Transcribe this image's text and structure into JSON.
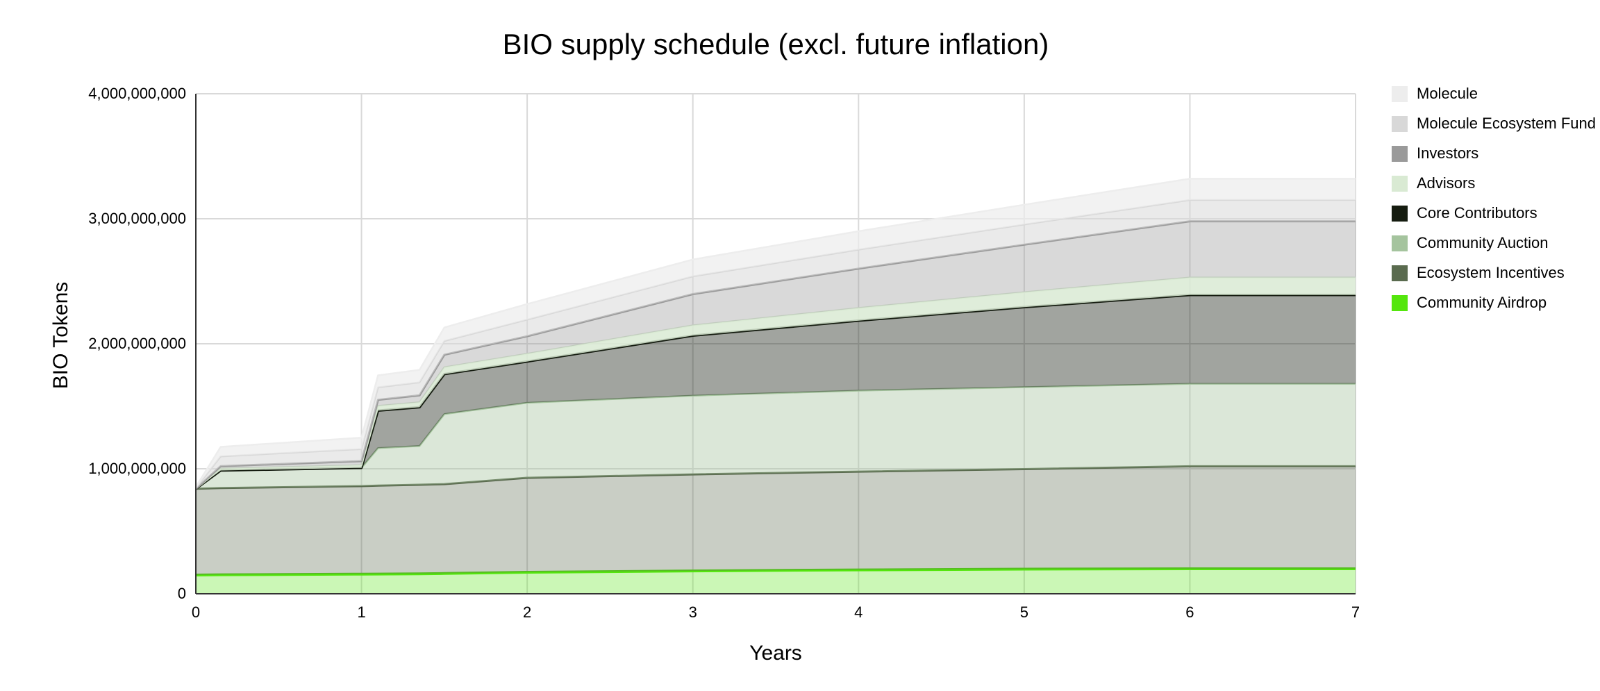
{
  "title": "BIO supply schedule (excl. future inflation)",
  "axes": {
    "x_title": "Years",
    "y_title": "BIO Tokens"
  },
  "legend": {
    "items": [
      {
        "label": "Molecule",
        "color": "#ededed"
      },
      {
        "label": "Molecule Ecosystem Fund",
        "color": "#d8d8d8"
      },
      {
        "label": "Investors",
        "color": "#9a9a9a"
      },
      {
        "label": "Advisors",
        "color": "#d9ead3"
      },
      {
        "label": "Core Contributors",
        "color": "#151c10"
      },
      {
        "label": "Community Auction",
        "color": "#a5c49e"
      },
      {
        "label": "Ecosystem Incentives",
        "color": "#5a6b4f"
      },
      {
        "label": "Community Airdrop",
        "color": "#54e60d"
      }
    ]
  },
  "chart_data": {
    "type": "area",
    "stacked": true,
    "title": "BIO supply schedule (excl. future inflation)",
    "xlabel": "Years",
    "ylabel": "BIO Tokens",
    "xlim": [
      0,
      7
    ],
    "ylim": [
      0,
      4000000000
    ],
    "x_ticks": [
      0,
      1,
      2,
      3,
      4,
      5,
      6,
      7
    ],
    "y_ticks": [
      0,
      1000000000,
      2000000000,
      3000000000,
      4000000000
    ],
    "grid": true,
    "legend_position": "right",
    "values_unit": "millions of BIO tokens",
    "ymax_millions": 4000,
    "x": [
      0,
      0.15,
      1.0,
      1.1,
      1.35,
      1.5,
      2,
      3,
      4,
      5,
      6,
      7
    ],
    "series": [
      {
        "name": "Community Airdrop",
        "color": "#54e60d",
        "line_width": 4,
        "fill_opacity": 0.3,
        "values": [
          150,
          152,
          157,
          158,
          160,
          162,
          172,
          183,
          191,
          197,
          200,
          200
        ]
      },
      {
        "name": "Ecosystem Incentives",
        "color": "#5a6b4f",
        "line_width": 3,
        "fill_opacity": 0.33,
        "values": [
          690,
          694,
          704,
          707,
          712,
          715,
          756,
          772,
          786,
          800,
          820,
          820
        ]
      },
      {
        "name": "Community Auction",
        "color": "#a5c49e",
        "line_width": 2.5,
        "fill_opacity": 0.4,
        "values": [
          0,
          140,
          146,
          300,
          310,
          560,
          600,
          630,
          648,
          656,
          660,
          660
        ]
      },
      {
        "name": "Core Contributors",
        "color": "#151c10",
        "line_width": 3.5,
        "fill_opacity": 0.4,
        "values": [
          0,
          0,
          0,
          300,
          310,
          320,
          330,
          480,
          560,
          640,
          710,
          710
        ]
      },
      {
        "name": "Advisors",
        "color": "#d9ead3",
        "line_width": 2.5,
        "fill_opacity": 0.85,
        "values": [
          0,
          15,
          22,
          38,
          40,
          55,
          62,
          82,
          101,
          120,
          140,
          140
        ]
      },
      {
        "name": "Investors",
        "color": "#9a9a9a",
        "line_width": 3,
        "fill_opacity": 0.38,
        "values": [
          0,
          20,
          32,
          48,
          55,
          100,
          140,
          250,
          315,
          380,
          450,
          450
        ]
      },
      {
        "name": "Molecule Ecosystem Fund",
        "color": "#d8d8d8",
        "line_width": 2.5,
        "fill_opacity": 0.55,
        "values": [
          5,
          78,
          96,
          100,
          104,
          110,
          133,
          142,
          152,
          161,
          170,
          170
        ]
      },
      {
        "name": "Molecule",
        "color": "#ededed",
        "line_width": 2.5,
        "fill_opacity": 0.7,
        "values": [
          10,
          76,
          92,
          96,
          100,
          108,
          125,
          135,
          147,
          158,
          170,
          170
        ]
      }
    ]
  }
}
